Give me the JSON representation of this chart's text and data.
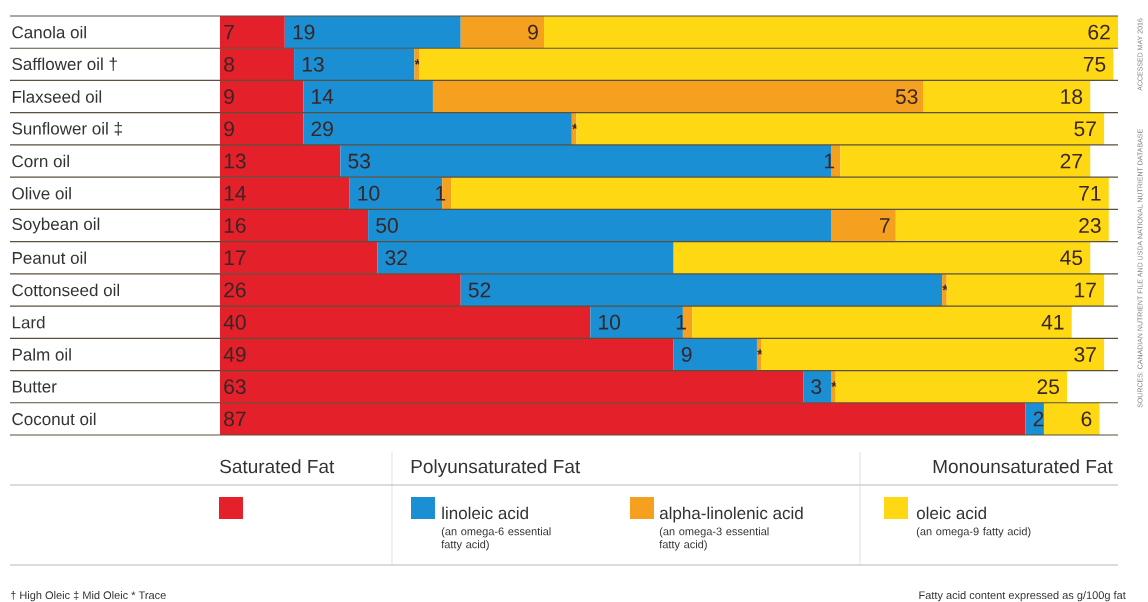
{
  "chart_data": {
    "type": "bar",
    "orientation": "horizontal",
    "stacked": true,
    "legend": "bottom",
    "tick_labels": "y",
    "xlim": [
      0,
      97
    ],
    "categories": [
      "Canola oil",
      "Safflower oil †",
      "Flaxseed oil",
      "Sunflower oil ‡",
      "Corn oil",
      "Olive oil",
      "Soybean oil",
      "Peanut oil",
      "Cottonseed oil",
      "Lard",
      "Palm oil",
      "Butter",
      "Coconut oil"
    ],
    "series": [
      {
        "name": "Saturated Fat",
        "color": "#e4202a",
        "values": [
          7,
          8,
          9,
          9,
          13,
          14,
          16,
          17,
          26,
          40,
          49,
          63,
          87
        ],
        "value_labels": [
          "7",
          "8",
          "9",
          "9",
          "13",
          "14",
          "16",
          "17",
          "26",
          "40",
          "49",
          "63",
          "87"
        ]
      },
      {
        "name": "linoleic acid",
        "color": "#1a8fd4",
        "values": [
          19,
          13,
          14,
          29,
          53,
          10,
          50,
          32,
          52,
          10,
          9,
          3,
          2
        ],
        "value_labels": [
          "19",
          "13",
          "14",
          "29",
          "53",
          "10",
          "50",
          "32",
          "52",
          "10",
          "9",
          "3",
          "2"
        ]
      },
      {
        "name": "alpha-linolenic acid",
        "color": "#f5a01e",
        "values": [
          9,
          0.5,
          53,
          0.5,
          1,
          1,
          7,
          null,
          0.5,
          1,
          0.5,
          0.5,
          null
        ],
        "value_labels": [
          "9",
          "*",
          "53",
          "*",
          "1",
          "1",
          "7",
          null,
          "*",
          "1",
          "*",
          "*",
          null
        ]
      },
      {
        "name": "oleic acid",
        "color": "#fdd813",
        "values": [
          62,
          75,
          18,
          57,
          27,
          71,
          23,
          45,
          17,
          41,
          37,
          25,
          6
        ],
        "value_labels": [
          "62",
          "75",
          "18",
          "57",
          "27",
          "71",
          "23",
          "45",
          "17",
          "41",
          "37",
          "25",
          "6"
        ]
      }
    ],
    "annotations": [
      "Polyunsaturated Fat",
      "Monounsaturated Fat",
      "(an omega-6 essential fatty acid)",
      "(an omega-3 essential fatty acid)",
      "(an omega-9 fatty acid)",
      "† High Oleic  ‡ Mid Oleic  * Trace",
      "Fatty acid content expressed as g/100g fat",
      "SOURCES: CANADIAN NUTRIENT FILE AND USDA NATIONAL NUTRIENT DATABASE",
      "ACCESSED MAY 2016"
    ]
  }
}
